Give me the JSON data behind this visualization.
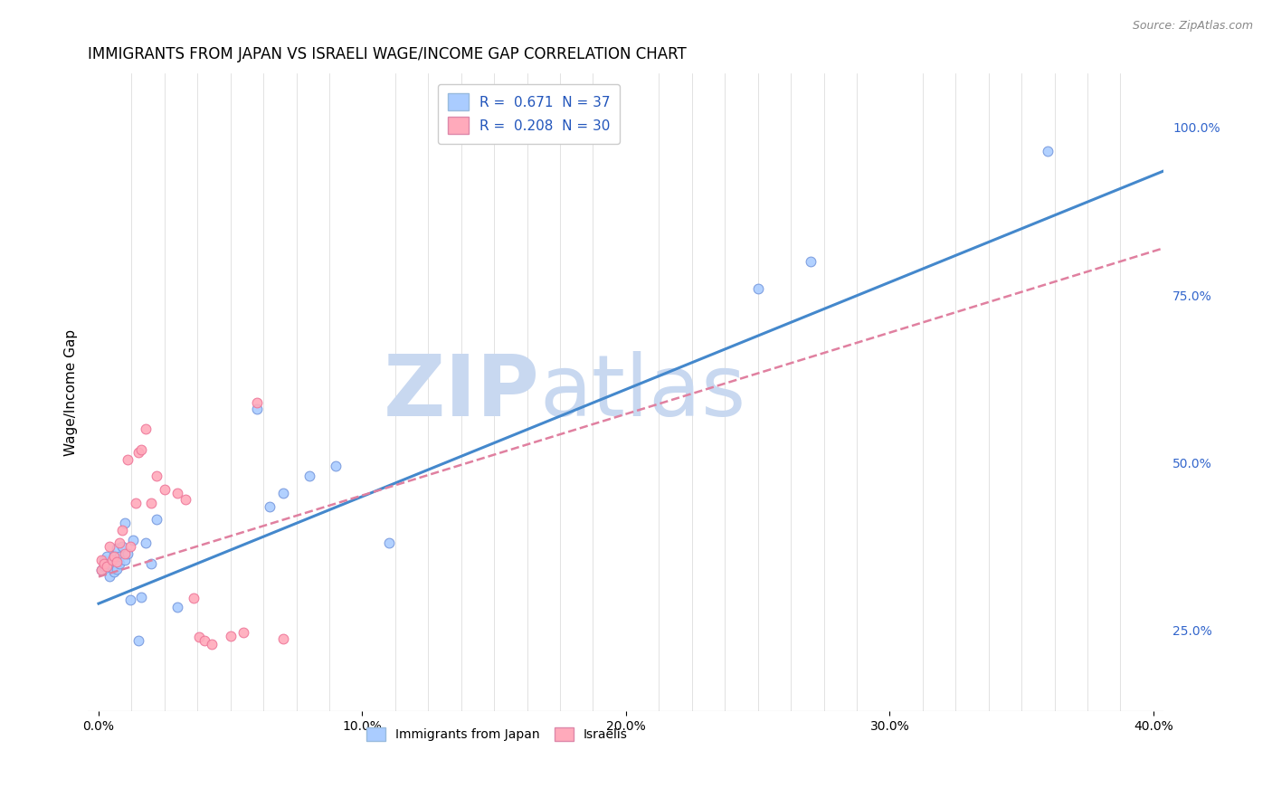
{
  "title": "IMMIGRANTS FROM JAPAN VS ISRAELI WAGE/INCOME GAP CORRELATION CHART",
  "source": "Source: ZipAtlas.com",
  "xlabel_ticks": [
    "0.0%",
    "",
    "",
    "",
    "",
    "",
    "",
    "",
    "10.0%",
    "",
    "",
    "",
    "",
    "",
    "",
    "",
    "20.0%",
    "",
    "",
    "",
    "",
    "",
    "",
    "",
    "30.0%",
    "",
    "",
    "",
    "",
    "",
    "",
    "",
    "40.0%"
  ],
  "xlabel_vals": [
    0.0,
    0.0125,
    0.025,
    0.0375,
    0.05,
    0.0625,
    0.075,
    0.0875,
    0.1,
    0.1125,
    0.125,
    0.1375,
    0.15,
    0.1625,
    0.175,
    0.1875,
    0.2,
    0.2125,
    0.225,
    0.2375,
    0.25,
    0.2625,
    0.275,
    0.2875,
    0.3,
    0.3125,
    0.325,
    0.3375,
    0.35,
    0.3625,
    0.375,
    0.3875,
    0.4
  ],
  "xlabel_major_vals": [
    0.0,
    0.1,
    0.2,
    0.3,
    0.4
  ],
  "xlabel_major_labels": [
    "0.0%",
    "10.0%",
    "20.0%",
    "30.0%",
    "40.0%"
  ],
  "ylabel": "Wage/Income Gap",
  "ylabel_right_ticks": [
    "25.0%",
    "50.0%",
    "75.0%",
    "100.0%"
  ],
  "ylabel_right_vals": [
    0.25,
    0.5,
    0.75,
    1.0
  ],
  "xlim": [
    -0.004,
    0.404
  ],
  "ylim": [
    0.13,
    1.08
  ],
  "watermark_zip": "ZIP",
  "watermark_atlas": "atlas",
  "watermark_color": "#c8d8f0",
  "watermark_fontsize_zip": 68,
  "watermark_fontsize_atlas": 68,
  "legend_r1": "R =  0.671",
  "legend_n1": "  N = 37",
  "legend_r2": "R =  0.208",
  "legend_n2": "  N = 30",
  "legend_color1": "#aaccff",
  "legend_color2": "#ffaabb",
  "legend_text_color": "#2255bb",
  "legend_rn_color": "#dd3333",
  "japan_scatter": {
    "color": "#aaccff",
    "edgecolor": "#7799dd",
    "x": [
      0.001,
      0.002,
      0.002,
      0.003,
      0.003,
      0.004,
      0.004,
      0.005,
      0.005,
      0.006,
      0.006,
      0.007,
      0.007,
      0.007,
      0.008,
      0.008,
      0.009,
      0.01,
      0.01,
      0.011,
      0.012,
      0.013,
      0.015,
      0.016,
      0.018,
      0.02,
      0.022,
      0.03,
      0.06,
      0.065,
      0.07,
      0.08,
      0.09,
      0.11,
      0.25,
      0.27,
      0.36
    ],
    "y": [
      0.34,
      0.345,
      0.355,
      0.35,
      0.36,
      0.33,
      0.35,
      0.345,
      0.35,
      0.338,
      0.362,
      0.345,
      0.372,
      0.342,
      0.35,
      0.36,
      0.375,
      0.355,
      0.41,
      0.365,
      0.295,
      0.385,
      0.235,
      0.3,
      0.38,
      0.35,
      0.415,
      0.285,
      0.58,
      0.435,
      0.455,
      0.48,
      0.495,
      0.38,
      0.76,
      0.8,
      0.965
    ]
  },
  "israel_scatter": {
    "color": "#ffaabb",
    "edgecolor": "#ee7799",
    "x": [
      0.001,
      0.001,
      0.002,
      0.003,
      0.004,
      0.005,
      0.006,
      0.007,
      0.008,
      0.009,
      0.01,
      0.011,
      0.012,
      0.014,
      0.015,
      0.016,
      0.018,
      0.02,
      0.022,
      0.025,
      0.03,
      0.033,
      0.036,
      0.038,
      0.04,
      0.043,
      0.05,
      0.055,
      0.06,
      0.07
    ],
    "y": [
      0.34,
      0.355,
      0.35,
      0.345,
      0.375,
      0.355,
      0.36,
      0.352,
      0.38,
      0.4,
      0.365,
      0.505,
      0.375,
      0.44,
      0.515,
      0.52,
      0.55,
      0.44,
      0.48,
      0.46,
      0.455,
      0.445,
      0.298,
      0.24,
      0.235,
      0.23,
      0.242,
      0.247,
      0.59,
      0.238
    ]
  },
  "blue_line": {
    "x": [
      0.0,
      0.404
    ],
    "y": [
      0.29,
      0.935
    ],
    "color": "#4488cc",
    "linewidth": 2.2,
    "linestyle": "solid"
  },
  "pink_line": {
    "x": [
      0.0,
      0.404
    ],
    "y": [
      0.33,
      0.82
    ],
    "color": "#e080a0",
    "linewidth": 1.8,
    "linestyle": "dashed"
  },
  "grid_color": "#cccccc",
  "grid_linestyle": "--",
  "background_color": "#ffffff",
  "title_fontsize": 12,
  "axis_fontsize": 10,
  "scatter_size": 60
}
